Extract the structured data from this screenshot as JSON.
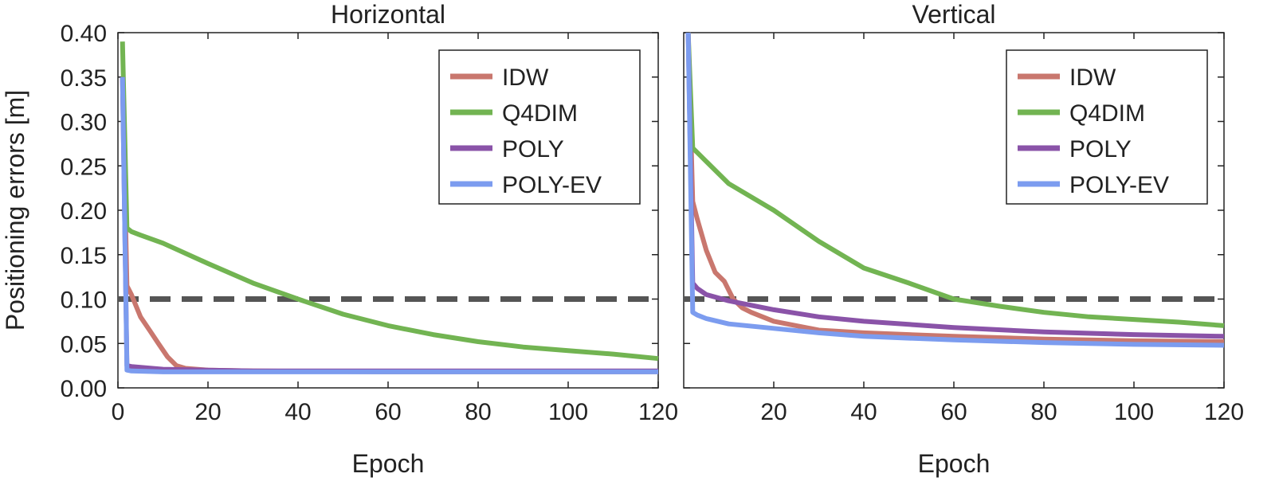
{
  "figure": {
    "ylabel": "Positioning errors [m]",
    "yticks": [
      "0.00",
      "0.05",
      "0.10",
      "0.15",
      "0.20",
      "0.25",
      "0.30",
      "0.35",
      "0.40"
    ],
    "threshold": 0.1,
    "threshold_color": "#555555",
    "colors": {
      "IDW": "#c9776e",
      "Q4DIM": "#72b452",
      "POLY": "#8a53a8",
      "POLY-EV": "#7c9cef"
    }
  },
  "chart_data": [
    {
      "type": "line",
      "title": "Horizontal",
      "xlabel": "Epoch",
      "ylabel": "Positioning errors [m]",
      "xlim": [
        0,
        120
      ],
      "ylim": [
        0,
        0.4
      ],
      "xticks": [
        "0",
        "20",
        "40",
        "60",
        "80",
        "100",
        "120"
      ],
      "legend": [
        "IDW",
        "Q4DIM",
        "POLY",
        "POLY-EV"
      ],
      "legend_position": "top-right",
      "series": [
        {
          "name": "IDW",
          "x": [
            1,
            2,
            3,
            5,
            7,
            9,
            11,
            13,
            15,
            20,
            30,
            60,
            90,
            120
          ],
          "y": [
            0.35,
            0.115,
            0.105,
            0.08,
            0.065,
            0.05,
            0.035,
            0.025,
            0.022,
            0.02,
            0.019,
            0.018,
            0.018,
            0.018
          ]
        },
        {
          "name": "Q4DIM",
          "x": [
            1,
            2,
            3,
            5,
            10,
            20,
            30,
            40,
            50,
            60,
            70,
            80,
            90,
            100,
            110,
            120
          ],
          "y": [
            0.39,
            0.18,
            0.176,
            0.172,
            0.163,
            0.14,
            0.118,
            0.1,
            0.083,
            0.07,
            0.06,
            0.052,
            0.046,
            0.042,
            0.038,
            0.033
          ]
        },
        {
          "name": "POLY",
          "x": [
            1,
            2,
            3,
            10,
            30,
            60,
            90,
            120
          ],
          "y": [
            0.35,
            0.025,
            0.024,
            0.021,
            0.019,
            0.019,
            0.019,
            0.019
          ]
        },
        {
          "name": "POLY-EV",
          "x": [
            1,
            2,
            3,
            10,
            30,
            60,
            90,
            120
          ],
          "y": [
            0.35,
            0.02,
            0.019,
            0.018,
            0.018,
            0.018,
            0.018,
            0.018
          ]
        }
      ]
    },
    {
      "type": "line",
      "title": "Vertical",
      "xlabel": "Epoch",
      "ylabel": "",
      "xlim": [
        0,
        120
      ],
      "ylim": [
        0,
        0.4
      ],
      "xticks": [
        "20",
        "40",
        "60",
        "80",
        "100",
        "120"
      ],
      "legend": [
        "IDW",
        "Q4DIM",
        "POLY",
        "POLY-EV"
      ],
      "legend_position": "top-right",
      "series": [
        {
          "name": "IDW",
          "x": [
            1,
            2,
            3,
            5,
            7,
            9,
            11,
            13,
            15,
            20,
            30,
            40,
            60,
            80,
            100,
            120
          ],
          "y": [
            0.4,
            0.21,
            0.19,
            0.155,
            0.13,
            0.12,
            0.1,
            0.09,
            0.085,
            0.075,
            0.065,
            0.062,
            0.058,
            0.055,
            0.053,
            0.052
          ]
        },
        {
          "name": "Q4DIM",
          "x": [
            1,
            2,
            3,
            5,
            10,
            20,
            30,
            40,
            50,
            60,
            70,
            80,
            90,
            100,
            110,
            120
          ],
          "y": [
            0.4,
            0.27,
            0.265,
            0.255,
            0.23,
            0.2,
            0.165,
            0.135,
            0.118,
            0.1,
            0.092,
            0.085,
            0.08,
            0.077,
            0.074,
            0.07
          ]
        },
        {
          "name": "POLY",
          "x": [
            1,
            2,
            3,
            5,
            10,
            20,
            30,
            40,
            60,
            80,
            100,
            120
          ],
          "y": [
            0.4,
            0.118,
            0.112,
            0.105,
            0.098,
            0.088,
            0.08,
            0.075,
            0.068,
            0.063,
            0.06,
            0.058
          ]
        },
        {
          "name": "POLY-EV",
          "x": [
            1,
            2,
            3,
            5,
            10,
            20,
            30,
            40,
            60,
            80,
            100,
            120
          ],
          "y": [
            0.4,
            0.085,
            0.082,
            0.078,
            0.072,
            0.067,
            0.062,
            0.058,
            0.054,
            0.051,
            0.049,
            0.048
          ]
        }
      ]
    }
  ]
}
